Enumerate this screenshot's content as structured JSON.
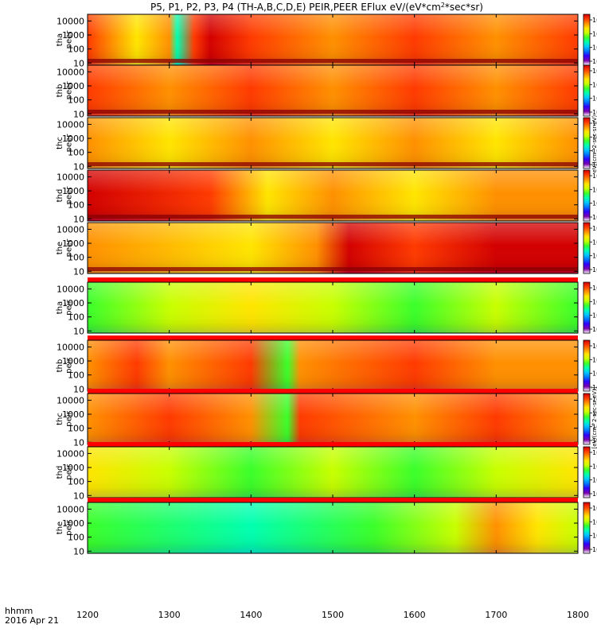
{
  "chart_data": {
    "type": "heatmap",
    "title": "P5, P1, P2, P3, P4 (TH-A,B,C,D,E) PEIR,PEER EFlux eV/(eV*cm^2*sec*sr)",
    "title_main": "P5, P1, P2, P3, P4 (TH-A,B,C,D,E) PEIR,PEER EFlux eV/(eV*cm",
    "title_sup1": "2",
    "title_mid": "*sec*sr)",
    "x_ticks": [
      "1200",
      "1300",
      "1400",
      "1500",
      "1600",
      "1700",
      "1800"
    ],
    "x_range": [
      1200,
      1800
    ],
    "x_label_1": "hhmm",
    "x_label_2": "2016 Apr 21",
    "y_scale": "log",
    "y_ticks": [
      "10",
      "100",
      "1000",
      "10000"
    ],
    "colorbar": {
      "colors": [
        "#ffffff",
        "#7b00ad",
        "#3000ff",
        "#0073ff",
        "#00c8ff",
        "#00ffb0",
        "#3aff2a",
        "#c8ff00",
        "#ffe500",
        "#ff9000",
        "#ff3a00",
        "#d30000"
      ],
      "ticks_electron": [
        {
          "base": "10",
          "exp": "8"
        },
        {
          "base": "10",
          "exp": "6"
        },
        {
          "base": "10",
          "exp": "4"
        },
        {
          "base": "10",
          "exp": "2"
        }
      ],
      "ticks_ion": [
        {
          "base": "10",
          "exp": "7"
        },
        {
          "base": "10",
          "exp": "5"
        },
        {
          "base": "10",
          "exp": "3"
        },
        {
          "base": "10",
          "exp": "1"
        }
      ],
      "label_electron": "eV/(cm^2-sec-sr-eV)",
      "label_ion": "[eV/(cm^2-sec-sr-eV)]"
    },
    "panels": [
      {
        "name": "tha peer",
        "ylabel_1": "tha",
        "ylabel_2": "peer",
        "species": "electron",
        "profile": [
          [
            1200,
            "#ff3a00"
          ],
          [
            1260,
            "#ffe500"
          ],
          [
            1300,
            "#ff9000"
          ],
          [
            1310,
            "#00ffb0"
          ],
          [
            1330,
            "#ff3a00"
          ],
          [
            1350,
            "#d30000"
          ],
          [
            1400,
            "#ff3a00"
          ],
          [
            1500,
            "#ff9000"
          ],
          [
            1600,
            "#ff3a00"
          ],
          [
            1700,
            "#ff9000"
          ],
          [
            1800,
            "#ff3a00"
          ]
        ]
      },
      {
        "name": "thb peer",
        "ylabel_1": "thb",
        "ylabel_2": "peer",
        "species": "electron",
        "profile": [
          [
            1200,
            "#ff3a00"
          ],
          [
            1300,
            "#ff9000"
          ],
          [
            1400,
            "#ff3a00"
          ],
          [
            1500,
            "#ff9000"
          ],
          [
            1600,
            "#ff3a00"
          ],
          [
            1700,
            "#ff9000"
          ],
          [
            1800,
            "#ff3a00"
          ]
        ]
      },
      {
        "name": "thc peer",
        "ylabel_1": "thc",
        "ylabel_2": "peer",
        "species": "electron",
        "profile": [
          [
            1200,
            "#ff9000"
          ],
          [
            1300,
            "#ffe500"
          ],
          [
            1400,
            "#ff9000"
          ],
          [
            1500,
            "#ffe500"
          ],
          [
            1600,
            "#ff9000"
          ],
          [
            1700,
            "#ffe500"
          ],
          [
            1800,
            "#ff9000"
          ]
        ]
      },
      {
        "name": "thd peer",
        "ylabel_1": "thd",
        "ylabel_2": "peer",
        "species": "electron",
        "profile": [
          [
            1200,
            "#d30000"
          ],
          [
            1350,
            "#ff3a00"
          ],
          [
            1420,
            "#ffe500"
          ],
          [
            1500,
            "#ff9000"
          ],
          [
            1600,
            "#ffe500"
          ],
          [
            1700,
            "#ff9000"
          ],
          [
            1800,
            "#ff9000"
          ]
        ]
      },
      {
        "name": "the peer",
        "ylabel_1": "the",
        "ylabel_2": "peer",
        "species": "electron",
        "profile": [
          [
            1200,
            "#ff9000"
          ],
          [
            1400,
            "#ffe500"
          ],
          [
            1480,
            "#ff9000"
          ],
          [
            1520,
            "#d30000"
          ],
          [
            1600,
            "#ff3a00"
          ],
          [
            1700,
            "#d30000"
          ],
          [
            1800,
            "#d30000"
          ]
        ]
      },
      {
        "name": "tha peir",
        "ylabel_1": "tha",
        "ylabel_2": "peir",
        "species": "ion",
        "profile": [
          [
            1200,
            "#3aff2a"
          ],
          [
            1300,
            "#c8ff00"
          ],
          [
            1400,
            "#ffe500"
          ],
          [
            1500,
            "#c8ff00"
          ],
          [
            1600,
            "#3aff2a"
          ],
          [
            1700,
            "#c8ff00"
          ],
          [
            1800,
            "#3aff2a"
          ]
        ]
      },
      {
        "name": "thb peir",
        "ylabel_1": "thb",
        "ylabel_2": "peir",
        "species": "ion",
        "profile": [
          [
            1200,
            "#ff9000"
          ],
          [
            1260,
            "#ff3a00"
          ],
          [
            1300,
            "#ff9000"
          ],
          [
            1400,
            "#ff3a00"
          ],
          [
            1445,
            "#3aff2a"
          ],
          [
            1460,
            "#ff9000"
          ],
          [
            1600,
            "#ff3a00"
          ],
          [
            1700,
            "#ff9000"
          ],
          [
            1800,
            "#ff9000"
          ]
        ]
      },
      {
        "name": "thc peir",
        "ylabel_1": "thc",
        "ylabel_2": "peir",
        "species": "ion",
        "profile": [
          [
            1200,
            "#ff9000"
          ],
          [
            1300,
            "#ff3a00"
          ],
          [
            1400,
            "#ff9000"
          ],
          [
            1445,
            "#3aff2a"
          ],
          [
            1460,
            "#ff3a00"
          ],
          [
            1600,
            "#ff9000"
          ],
          [
            1700,
            "#ff3a00"
          ],
          [
            1800,
            "#ff9000"
          ]
        ]
      },
      {
        "name": "thd peir",
        "ylabel_1": "thd",
        "ylabel_2": "peir",
        "species": "ion",
        "profile": [
          [
            1200,
            "#ffe500"
          ],
          [
            1300,
            "#c8ff00"
          ],
          [
            1400,
            "#3aff2a"
          ],
          [
            1500,
            "#c8ff00"
          ],
          [
            1600,
            "#3aff2a"
          ],
          [
            1700,
            "#c8ff00"
          ],
          [
            1800,
            "#ffe500"
          ]
        ]
      },
      {
        "name": "the peir",
        "ylabel_1": "the",
        "ylabel_2": "peir",
        "species": "ion",
        "profile": [
          [
            1200,
            "#3aff2a"
          ],
          [
            1400,
            "#00ffb0"
          ],
          [
            1550,
            "#3aff2a"
          ],
          [
            1650,
            "#c8ff00"
          ],
          [
            1700,
            "#ff9000"
          ],
          [
            1750,
            "#ffe500"
          ],
          [
            1800,
            "#c8ff00"
          ]
        ]
      }
    ]
  }
}
